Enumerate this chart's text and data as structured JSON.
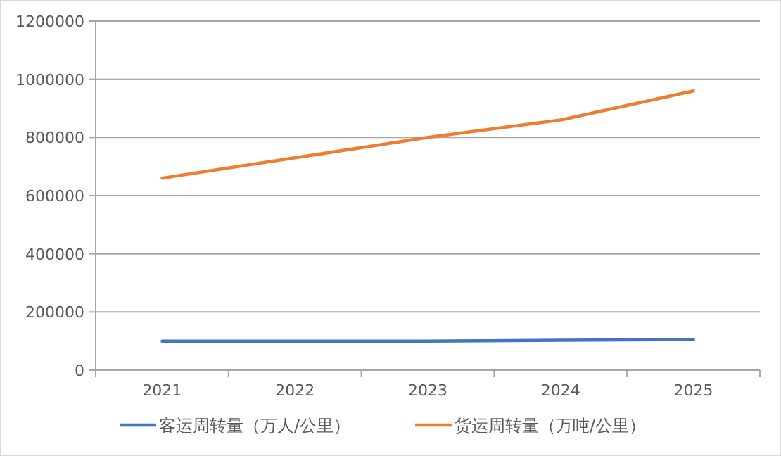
{
  "chart_data": {
    "type": "line",
    "categories": [
      "2021",
      "2022",
      "2023",
      "2024",
      "2025"
    ],
    "series": [
      {
        "name": "客运周转量（万人/公里）",
        "color": "#4472c4",
        "values": [
          100000,
          100000,
          100000,
          103000,
          105000
        ]
      },
      {
        "name": "货运周转量（万吨/公里）",
        "color": "#ed7d31",
        "values": [
          660000,
          730000,
          800000,
          860000,
          960000
        ]
      }
    ],
    "ylim": [
      0,
      1200000
    ],
    "yticks": [
      0,
      200000,
      400000,
      600000,
      800000,
      1000000,
      1200000
    ],
    "grid": "y",
    "legend": "bottom",
    "marker": "none"
  }
}
